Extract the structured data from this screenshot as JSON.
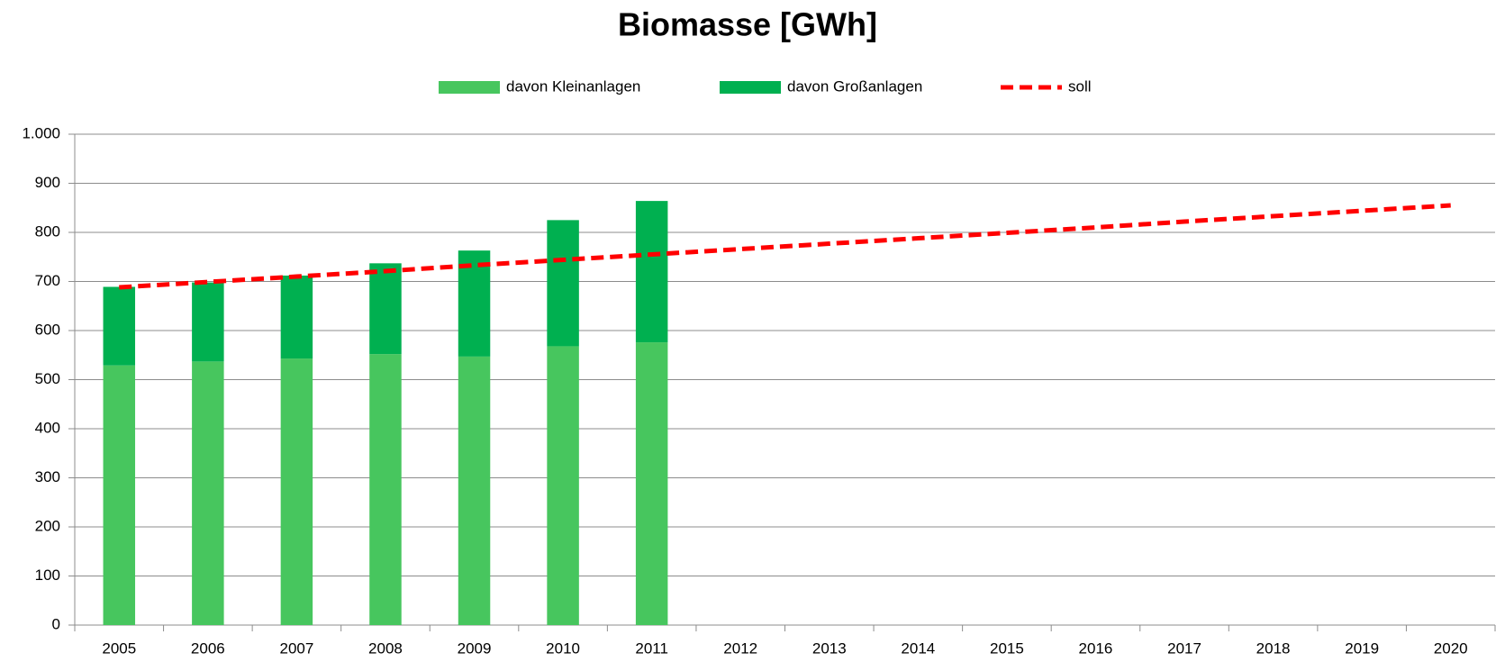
{
  "chart_data": {
    "type": "bar+line",
    "title": "Biomasse [GWh]",
    "categories": [
      "2005",
      "2006",
      "2007",
      "2008",
      "2009",
      "2010",
      "2011",
      "2012",
      "2013",
      "2014",
      "2015",
      "2016",
      "2017",
      "2018",
      "2019",
      "2020"
    ],
    "series": [
      {
        "name": "davon Kleinanlagen",
        "type": "bar",
        "stack": "a",
        "color": "#47c65e",
        "values": [
          529,
          537,
          543,
          552,
          547,
          568,
          576,
          null,
          null,
          null,
          null,
          null,
          null,
          null,
          null,
          null
        ]
      },
      {
        "name": "davon Großanlagen",
        "type": "bar",
        "stack": "a",
        "color": "#00b050",
        "values": [
          160,
          161,
          169,
          185,
          216,
          257,
          288,
          null,
          null,
          null,
          null,
          null,
          null,
          null,
          null,
          null
        ]
      },
      {
        "name": "soll",
        "type": "line",
        "dashed": true,
        "color": "#ff0000",
        "values": [
          688,
          699,
          710,
          721,
          733,
          744,
          755,
          766,
          777,
          788,
          799,
          810,
          822,
          833,
          844,
          855
        ]
      }
    ],
    "ylim": [
      0,
      1000
    ],
    "yticks": [
      0,
      100,
      200,
      300,
      400,
      500,
      600,
      700,
      800,
      900,
      {
        "value": 1000,
        "label": "1.000"
      }
    ],
    "grid": true,
    "legend": "top"
  }
}
